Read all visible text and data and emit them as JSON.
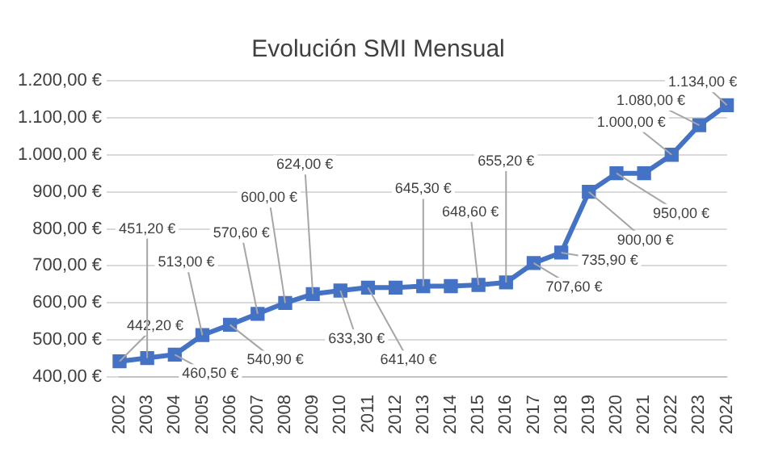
{
  "chart_data": {
    "type": "line",
    "title": "Evolución SMI Mensual",
    "categories": [
      "2002",
      "2003",
      "2004",
      "2005",
      "2006",
      "2007",
      "2008",
      "2009",
      "2010",
      "2011",
      "2012",
      "2013",
      "2014",
      "2015",
      "2016",
      "2017",
      "2018",
      "2019",
      "2020",
      "2021",
      "2022",
      "2023",
      "2024"
    ],
    "series": [
      {
        "color": "#4472c4",
        "values": [
          442.2,
          451.2,
          460.5,
          513,
          540.9,
          570.6,
          600,
          624,
          633.3,
          641.4,
          641.4,
          645.3,
          645.3,
          648.6,
          655.2,
          707.6,
          735.9,
          900,
          950,
          950,
          1000,
          1080,
          1134
        ],
        "value_labels": [
          "442,20 €",
          "451,20 €",
          "460,50 €",
          "513,00 €",
          "540,90 €",
          "570,60 €",
          "600,00 €",
          "624,00 €",
          "633,30 €",
          "641,40 €",
          null,
          "645,30 €",
          null,
          "648,60 €",
          "655,20 €",
          "707,60 €",
          "735,90 €",
          "900,00 €",
          "950,00 €",
          null,
          "1.000,00 €",
          "1.080,00 €",
          "1.134,00 €"
        ]
      }
    ],
    "ylim": [
      400,
      1200
    ],
    "yticks": [
      {
        "value": 400,
        "label": "400,00 €"
      },
      {
        "value": 500,
        "label": "500,00 €"
      },
      {
        "value": 600,
        "label": "600,00 €"
      },
      {
        "value": 700,
        "label": "700,00 €"
      },
      {
        "value": 800,
        "label": "800,00 €"
      },
      {
        "value": 900,
        "label": "900,00 €"
      },
      {
        "value": 1000,
        "label": "1.000,00 €"
      },
      {
        "value": 1100,
        "label": "1.100,00 €"
      },
      {
        "value": 1200,
        "label": "1.200,00 €"
      }
    ],
    "grid": "y",
    "legend": false,
    "marker": "square",
    "line_style": "solid"
  }
}
